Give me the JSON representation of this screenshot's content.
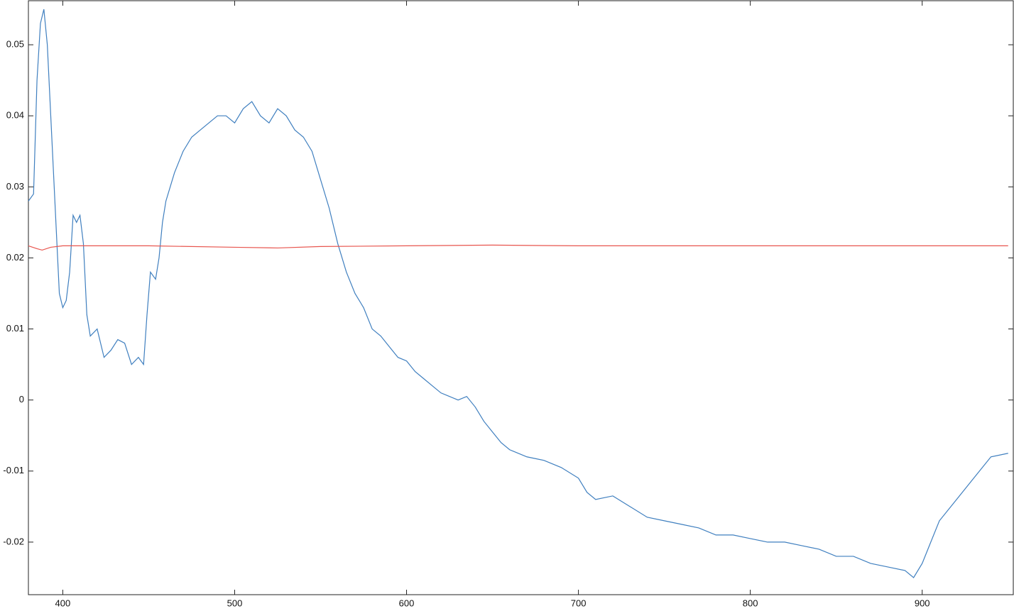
{
  "chart_data": {
    "type": "line",
    "xlim": [
      380,
      953
    ],
    "ylim": [
      -0.0274,
      0.0562
    ],
    "xticks": [
      400,
      500,
      600,
      700,
      800,
      900
    ],
    "yticks": [
      -0.02,
      -0.01,
      0,
      0.01,
      0.02,
      0.03,
      0.04,
      0.05
    ],
    "series": [
      {
        "color": "#3f7fbf",
        "x": [
          380,
          383,
          385,
          387,
          389,
          391,
          393,
          395,
          397,
          398,
          400,
          402,
          404,
          406,
          408,
          410,
          412,
          414,
          416,
          420,
          424,
          428,
          432,
          436,
          440,
          444,
          447,
          449,
          451,
          454,
          456,
          458,
          460,
          465,
          470,
          475,
          480,
          485,
          490,
          495,
          500,
          505,
          510,
          515,
          520,
          525,
          530,
          535,
          540,
          545,
          550,
          555,
          560,
          565,
          570,
          575,
          580,
          585,
          590,
          595,
          600,
          605,
          610,
          615,
          620,
          625,
          630,
          635,
          640,
          645,
          650,
          655,
          660,
          670,
          680,
          690,
          700,
          705,
          710,
          720,
          730,
          740,
          750,
          760,
          770,
          780,
          790,
          800,
          810,
          820,
          830,
          840,
          850,
          860,
          870,
          880,
          890,
          895,
          900,
          905,
          910,
          920,
          930,
          940,
          950
        ],
        "values": [
          0.028,
          0.029,
          0.045,
          0.053,
          0.055,
          0.05,
          0.04,
          0.03,
          0.02,
          0.015,
          0.013,
          0.014,
          0.018,
          0.026,
          0.025,
          0.026,
          0.022,
          0.012,
          0.009,
          0.01,
          0.006,
          0.007,
          0.0085,
          0.008,
          0.005,
          0.006,
          0.005,
          0.012,
          0.018,
          0.017,
          0.02,
          0.025,
          0.028,
          0.032,
          0.035,
          0.037,
          0.038,
          0.039,
          0.04,
          0.04,
          0.039,
          0.041,
          0.042,
          0.04,
          0.039,
          0.041,
          0.04,
          0.038,
          0.037,
          0.035,
          0.031,
          0.027,
          0.022,
          0.018,
          0.015,
          0.013,
          0.01,
          0.009,
          0.0075,
          0.006,
          0.0055,
          0.004,
          0.003,
          0.002,
          0.001,
          0.0005,
          0.0,
          0.0005,
          -0.001,
          -0.003,
          -0.0045,
          -0.006,
          -0.007,
          -0.008,
          -0.0085,
          -0.0095,
          -0.011,
          -0.013,
          -0.014,
          -0.0135,
          -0.015,
          -0.0165,
          -0.017,
          -0.0175,
          -0.018,
          -0.019,
          -0.019,
          -0.0195,
          -0.02,
          -0.02,
          -0.0205,
          -0.021,
          -0.022,
          -0.022,
          -0.023,
          -0.0235,
          -0.024,
          -0.025,
          -0.023,
          -0.02,
          -0.017,
          -0.014,
          -0.011,
          -0.008,
          -0.0075
        ]
      },
      {
        "color": "#e8554e",
        "x": [
          380,
          385,
          388,
          393,
          400,
          450,
          500,
          525,
          550,
          600,
          650,
          700,
          800,
          900,
          950
        ],
        "values": [
          0.0217,
          0.0213,
          0.0211,
          0.0215,
          0.0217,
          0.0217,
          0.0215,
          0.0214,
          0.0216,
          0.0217,
          0.0218,
          0.0217,
          0.0217,
          0.0217,
          0.0217
        ]
      }
    ]
  }
}
